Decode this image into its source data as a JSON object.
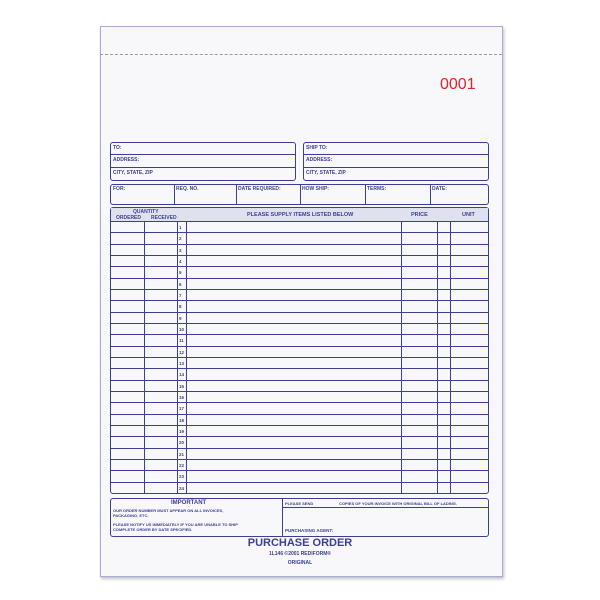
{
  "form_number": "0001",
  "ship_boxes": {
    "to": {
      "to_label": "TO:",
      "address_label": "ADDRESS:",
      "city_label": "CITY, STATE, ZIP"
    },
    "ship_to": {
      "to_label": "SHIP TO:",
      "address_label": "ADDRESS:",
      "city_label": "CITY, STATE, ZIP"
    }
  },
  "info_row": [
    "FOR:",
    "REQ. NO.",
    "DATE REQUIRED:",
    "HOW SHIP:",
    "TERMS:",
    "DATE:"
  ],
  "table": {
    "quantity_label": "QUANTITY",
    "ordered_label": "ORDERED",
    "received_label": "RECEIVED",
    "items_label": "PLEASE SUPPLY ITEMS LISTED BELOW",
    "price_label": "PRICE",
    "unit_label": "UNIT",
    "row_numbers": [
      "1",
      "2",
      "3",
      "4",
      "5",
      "6",
      "7",
      "8",
      "9",
      "10",
      "11",
      "12",
      "13",
      "14",
      "15",
      "16",
      "17",
      "18",
      "19",
      "20",
      "21",
      "22",
      "23",
      "24"
    ]
  },
  "footer_box": {
    "important_label": "IMPORTANT",
    "important_line1": "OUR ORDER NUMBER MUST APPEAR ON ALL INVOICES,",
    "important_line2": "PACKAGING, ETC.",
    "important_line3": "PLEASE NOTIFY US IMMEDIATELY IF YOU ARE UNABLE TO SHIP",
    "important_line4": "COMPLETE ORDER BY DATE SPECIFIED.",
    "please_send": "PLEASE SEND",
    "copies_text": "COPIES OF YOUR INVOICE WITH ORIGINAL BILL OF LADING.",
    "agent_label": "PURCHASING AGENT:"
  },
  "title": "PURCHASE ORDER",
  "product_line": "1L146  ©2001 REDIFORM®",
  "copy_label": "ORIGINAL",
  "colors": {
    "ink": "#3b3f98",
    "number": "#e0242b",
    "header_fill": "#dfe1ef"
  }
}
